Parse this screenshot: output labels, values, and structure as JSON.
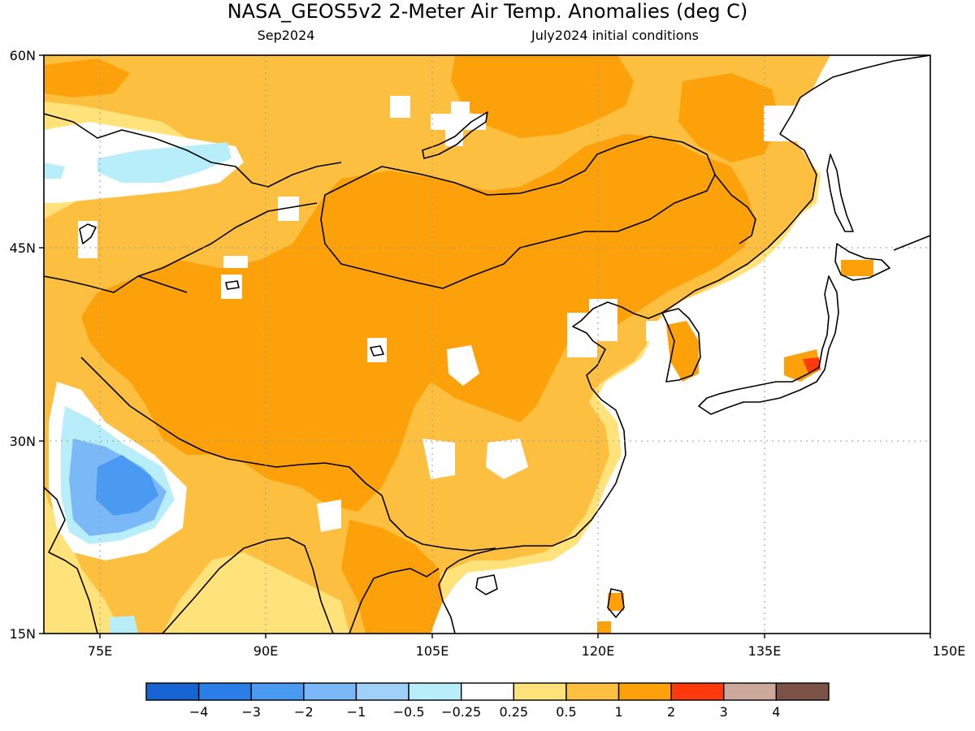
{
  "header": {
    "title": "NASA_GEOS5v2 2-Meter Air Temp. Anomalies (deg C)",
    "left_label": "Sep2024",
    "right_label": "July2024 initial conditions"
  },
  "axes": {
    "x_ticks": [
      "75E",
      "90E",
      "105E",
      "120E",
      "135E",
      "150E"
    ],
    "y_ticks": [
      "60N",
      "45N",
      "30N",
      "15N"
    ],
    "lon_range": [
      70,
      150
    ],
    "lat_range": [
      15,
      60
    ]
  },
  "colorbar": {
    "colors": [
      "#1763d1",
      "#2a7ee6",
      "#4a9af2",
      "#7ab8f7",
      "#9fd0fa",
      "#b7eef9",
      "#ffffff",
      "#ffe27a",
      "#fdbf40",
      "#fca10a",
      "#fd3a0c",
      "#cda99c",
      "#7d5246"
    ],
    "labels": [
      "−4",
      "−3",
      "−2",
      "−1",
      "−0.5",
      "−0.25",
      "0.25",
      "0.5",
      "1",
      "2",
      "3",
      "4"
    ]
  }
}
